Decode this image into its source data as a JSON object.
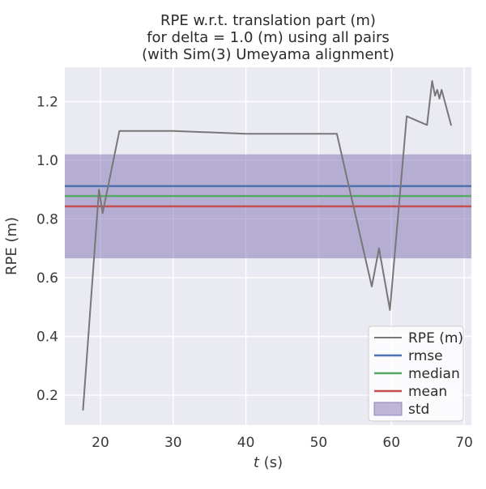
{
  "figure": {
    "title_lines": [
      "RPE w.r.t. translation part (m)",
      "for delta = 1.0 (m) using all pairs",
      "(with Sim(3) Umeyama alignment)"
    ],
    "xlabel_parts": {
      "italic": "t",
      "rest": " (s)"
    },
    "ylabel": "RPE (m)"
  },
  "style": {
    "figure_bg": "#ffffff",
    "axes_bg": "#eaeaf2",
    "grid_color": "#ffffff",
    "text_color": "#3a3a3a",
    "title_color": "#2b2b2b",
    "legend_bg": "#ffffff",
    "legend_border": "#cccccc"
  },
  "chart_data": {
    "type": "line",
    "title": "RPE w.r.t. translation part (m)\nfor delta = 1.0 (m) using all pairs\n(with Sim(3) Umeyama alignment)",
    "xlabel": "t (s)",
    "ylabel": "RPE (m)",
    "xlim": [
      15.1,
      71.0
    ],
    "ylim": [
      0.098,
      1.317
    ],
    "xticks": [
      20,
      30,
      40,
      50,
      60,
      70
    ],
    "yticks": [
      0.2,
      0.4,
      0.6,
      0.8,
      1.0,
      1.2
    ],
    "grid": true,
    "legend_position": "lower right",
    "legend_entries": [
      "RPE (m)",
      "rmse",
      "median",
      "mean",
      "std"
    ],
    "series": [
      {
        "name": "RPE (m)",
        "type": "line",
        "color": "#777777",
        "points": [
          [
            17.6,
            0.15
          ],
          [
            19.8,
            0.9
          ],
          [
            20.3,
            0.82
          ],
          [
            22.6,
            1.1
          ],
          [
            30.0,
            1.1
          ],
          [
            40.0,
            1.09
          ],
          [
            52.5,
            1.09
          ],
          [
            57.3,
            0.57
          ],
          [
            58.3,
            0.7
          ],
          [
            59.8,
            0.49
          ],
          [
            62.1,
            1.15
          ],
          [
            64.9,
            1.12
          ],
          [
            65.6,
            1.27
          ],
          [
            66.0,
            1.22
          ],
          [
            66.3,
            1.24
          ],
          [
            66.6,
            1.21
          ],
          [
            66.9,
            1.24
          ],
          [
            68.2,
            1.12
          ]
        ]
      },
      {
        "name": "rmse",
        "type": "hline",
        "color": "#4c72b0",
        "value": 0.912
      },
      {
        "name": "median",
        "type": "hline",
        "color": "#55a868",
        "value": 0.878
      },
      {
        "name": "mean",
        "type": "hline",
        "color": "#c44e52",
        "value": 0.843
      },
      {
        "name": "std",
        "type": "band",
        "color": "#8172b2",
        "range": [
          0.666,
          1.02
        ],
        "value": 0.177
      }
    ]
  }
}
